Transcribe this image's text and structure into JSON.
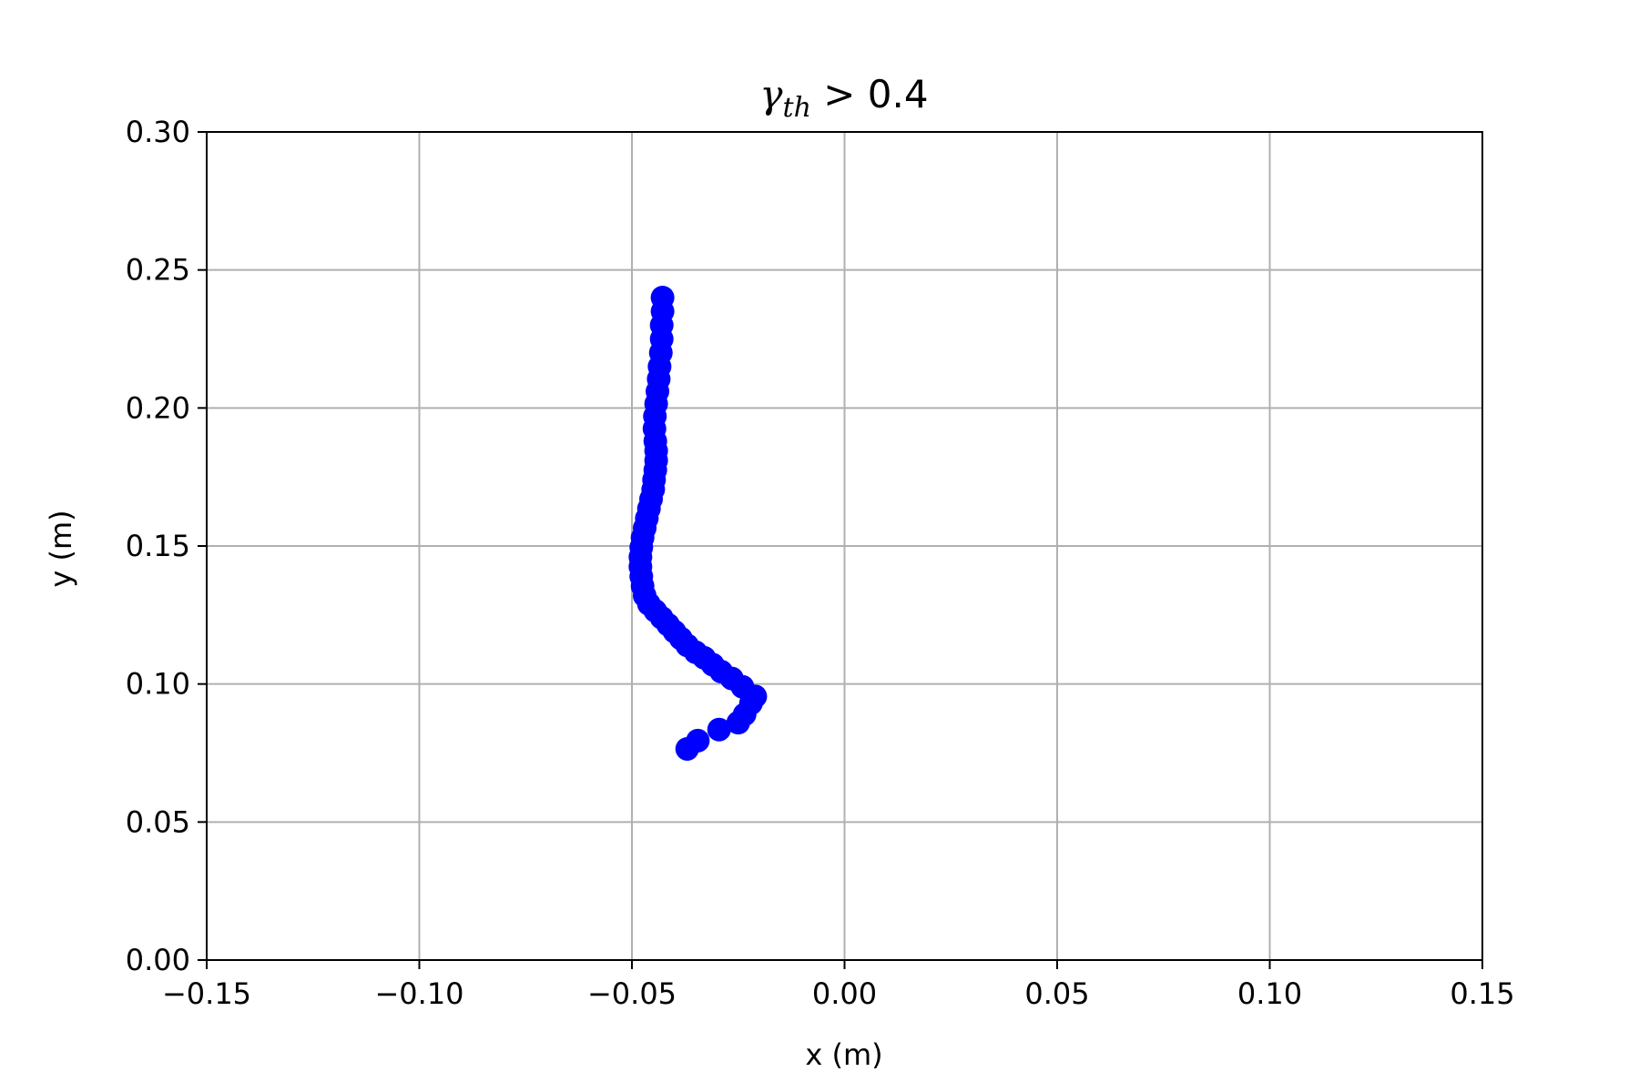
{
  "chart_data": {
    "type": "scatter",
    "title": {
      "symbol": "γ",
      "subscript": "th",
      "rest": " > 0.4"
    },
    "xlabel": "x (m)",
    "ylabel": "y (m)",
    "xlim": [
      -0.15,
      0.15
    ],
    "ylim": [
      0.0,
      0.3
    ],
    "xticks": [
      -0.15,
      -0.1,
      -0.05,
      0.0,
      0.05,
      0.1,
      0.15
    ],
    "xtick_labels": [
      "−0.15",
      "−0.10",
      "−0.05",
      "0.00",
      "0.05",
      "0.10",
      "0.15"
    ],
    "yticks": [
      0.0,
      0.05,
      0.1,
      0.15,
      0.2,
      0.25,
      0.3
    ],
    "ytick_labels": [
      "0.00",
      "0.05",
      "0.10",
      "0.15",
      "0.20",
      "0.25",
      "0.30"
    ],
    "grid": true,
    "marker_color": "#0000ff",
    "series": [
      {
        "x": [
          -0.037,
          -0.0345,
          -0.0295,
          -0.025,
          -0.0235,
          -0.022,
          -0.021,
          -0.024,
          -0.0265,
          -0.029,
          -0.031,
          -0.033,
          -0.035,
          -0.037,
          -0.0385,
          -0.04,
          -0.0415,
          -0.043,
          -0.0445,
          -0.046,
          -0.047,
          -0.0475,
          -0.0478,
          -0.048,
          -0.048,
          -0.0478,
          -0.0475,
          -0.047,
          -0.0465,
          -0.046,
          -0.0455,
          -0.045,
          -0.0448,
          -0.0445,
          -0.0443,
          -0.0443,
          -0.0445,
          -0.0447,
          -0.0446,
          -0.0443,
          -0.044,
          -0.0437,
          -0.0435,
          -0.0432,
          -0.043,
          -0.043,
          -0.0428,
          -0.0428
        ],
        "y": [
          0.0765,
          0.0795,
          0.0835,
          0.086,
          0.089,
          0.093,
          0.0955,
          0.099,
          0.102,
          0.1045,
          0.107,
          0.1095,
          0.1115,
          0.114,
          0.1165,
          0.119,
          0.1215,
          0.124,
          0.1265,
          0.129,
          0.132,
          0.1355,
          0.139,
          0.1425,
          0.146,
          0.1495,
          0.153,
          0.1565,
          0.16,
          0.1635,
          0.167,
          0.1705,
          0.174,
          0.1775,
          0.181,
          0.1845,
          0.188,
          0.1925,
          0.197,
          0.2015,
          0.206,
          0.2105,
          0.215,
          0.22,
          0.225,
          0.23,
          0.235,
          0.24
        ]
      }
    ]
  }
}
